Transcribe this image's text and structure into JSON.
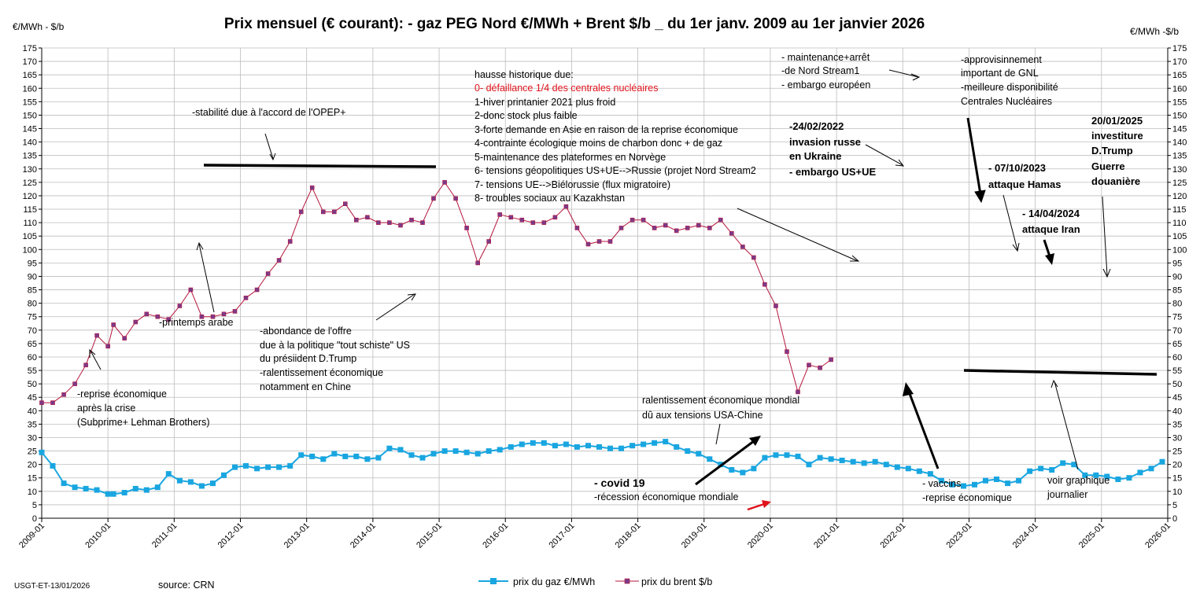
{
  "chart_data": {
    "type": "line",
    "title": "Prix mensuel (€ courant):  - gaz PEG Nord €/MWh + Brent $/b _  du 1er janv. 2009 au 1er janvier 2026",
    "ylabel_left": "€/MWh - $/b",
    "ylabel_right": "€/MWh -$/b",
    "ylim": [
      0,
      175
    ],
    "ytick_step": 5,
    "x_start": "2009-01",
    "x_end": "2026-01",
    "x_ticks": [
      "2009-01",
      "2010-01",
      "2011-01",
      "2012-01",
      "2013-01",
      "2014-01",
      "2015-01",
      "2016-01",
      "2017-01",
      "2018-01",
      "2019-01",
      "2020-01",
      "2021-01",
      "2022-01",
      "2023-01",
      "2024-01",
      "2025-01",
      "2026-01"
    ],
    "grid": true,
    "series": [
      {
        "name": "prix du gaz €/MWh",
        "color": "#19a6e0",
        "marker": "square",
        "points": [
          [
            "2009-01",
            24.5
          ],
          [
            "2009-03",
            19.5
          ],
          [
            "2009-05",
            13
          ],
          [
            "2009-07",
            11.5
          ],
          [
            "2009-09",
            11
          ],
          [
            "2009-11",
            10.5
          ],
          [
            "2010-01",
            9
          ],
          [
            "2010-02",
            9
          ],
          [
            "2010-04",
            9.5
          ],
          [
            "2010-06",
            11
          ],
          [
            "2010-08",
            10.5
          ],
          [
            "2010-10",
            11.5
          ],
          [
            "2010-12",
            16.5
          ],
          [
            "2011-02",
            14
          ],
          [
            "2011-04",
            13.5
          ],
          [
            "2011-06",
            12
          ],
          [
            "2011-08",
            13
          ],
          [
            "2011-10",
            16
          ],
          [
            "2011-12",
            19
          ],
          [
            "2012-02",
            19.5
          ],
          [
            "2012-04",
            18.5
          ],
          [
            "2012-06",
            19
          ],
          [
            "2012-08",
            19
          ],
          [
            "2012-10",
            19.5
          ],
          [
            "2012-12",
            23.5
          ],
          [
            "2013-02",
            23
          ],
          [
            "2013-04",
            22
          ],
          [
            "2013-06",
            24
          ],
          [
            "2013-08",
            23
          ],
          [
            "2013-10",
            23
          ],
          [
            "2013-12",
            22
          ],
          [
            "2014-02",
            22.5
          ],
          [
            "2014-04",
            26
          ],
          [
            "2014-06",
            25.5
          ],
          [
            "2014-08",
            23.5
          ],
          [
            "2014-10",
            22.5
          ],
          [
            "2014-12",
            24
          ],
          [
            "2015-02",
            25
          ],
          [
            "2015-04",
            25
          ],
          [
            "2015-06",
            24.5
          ],
          [
            "2015-08",
            24
          ],
          [
            "2015-10",
            25
          ],
          [
            "2015-12",
            25.5
          ],
          [
            "2016-02",
            26.5
          ],
          [
            "2016-04",
            27.5
          ],
          [
            "2016-06",
            28
          ],
          [
            "2016-08",
            28
          ],
          [
            "2016-10",
            27
          ],
          [
            "2016-12",
            27.5
          ],
          [
            "2017-02",
            26.5
          ],
          [
            "2017-04",
            27
          ],
          [
            "2017-06",
            26.5
          ],
          [
            "2017-08",
            26
          ],
          [
            "2017-10",
            26
          ],
          [
            "2017-12",
            27
          ],
          [
            "2018-02",
            27.5
          ],
          [
            "2018-04",
            28
          ],
          [
            "2018-06",
            28.5
          ],
          [
            "2018-08",
            26.5
          ],
          [
            "2018-10",
            25
          ],
          [
            "2018-12",
            24
          ],
          [
            "2019-02",
            22
          ],
          [
            "2019-04",
            20
          ],
          [
            "2019-06",
            18
          ],
          [
            "2019-08",
            17
          ],
          [
            "2019-10",
            18.5
          ],
          [
            "2019-12",
            22.5
          ],
          [
            "2020-02",
            23.5
          ],
          [
            "2020-04",
            23.5
          ],
          [
            "2020-06",
            23
          ],
          [
            "2020-08",
            20
          ],
          [
            "2020-10",
            22.5
          ],
          [
            "2020-12",
            22
          ],
          [
            "2021-02",
            21.5
          ],
          [
            "2021-04",
            21
          ],
          [
            "2021-06",
            20.5
          ],
          [
            "2021-08",
            21
          ],
          [
            "2021-10",
            20
          ],
          [
            "2021-12",
            19
          ],
          [
            "2022-02",
            18.5
          ],
          [
            "2022-04",
            17.5
          ],
          [
            "2022-06",
            16.5
          ],
          [
            "2022-08",
            14
          ],
          [
            "2022-10",
            12.5
          ],
          [
            "2022-12",
            12
          ],
          [
            "2023-02",
            12.5
          ],
          [
            "2023-04",
            14
          ],
          [
            "2023-06",
            14.5
          ],
          [
            "2023-08",
            13
          ],
          [
            "2023-10",
            14
          ],
          [
            "2023-12",
            17.5
          ],
          [
            "2024-02",
            18.5
          ],
          [
            "2024-04",
            18
          ],
          [
            "2024-06",
            20.5
          ],
          [
            "2024-08",
            20
          ],
          [
            "2024-10",
            16
          ],
          [
            "2024-12",
            16
          ],
          [
            "2025-02",
            15.5
          ],
          [
            "2025-04",
            14.5
          ],
          [
            "2025-06",
            15
          ],
          [
            "2025-08",
            17
          ],
          [
            "2025-10",
            18.5
          ],
          [
            "2025-12",
            21
          ]
        ]
      },
      {
        "name": "prix du brent $/b",
        "color": "#b5153c",
        "marker": "square",
        "points": [
          [
            "2009-01",
            43
          ],
          [
            "2009-03",
            43
          ],
          [
            "2009-05",
            46
          ],
          [
            "2009-07",
            50
          ],
          [
            "2009-09",
            57
          ],
          [
            "2009-11",
            68
          ],
          [
            "2010-01",
            64
          ],
          [
            "2010-02",
            72
          ],
          [
            "2010-04",
            67
          ],
          [
            "2010-06",
            73
          ],
          [
            "2010-08",
            76
          ],
          [
            "2010-10",
            75
          ],
          [
            "2010-12",
            74
          ],
          [
            "2011-02",
            79
          ],
          [
            "2011-04",
            85
          ],
          [
            "2011-06",
            75
          ],
          [
            "2011-08",
            75
          ],
          [
            "2011-10",
            76
          ],
          [
            "2011-12",
            77
          ],
          [
            "2012-02",
            82
          ],
          [
            "2012-04",
            85
          ],
          [
            "2012-06",
            91
          ],
          [
            "2012-08",
            96
          ],
          [
            "2012-10",
            103
          ],
          [
            "2012-12",
            114
          ],
          [
            "2013-02",
            123
          ],
          [
            "2013-04",
            114
          ],
          [
            "2013-06",
            114
          ],
          [
            "2013-08",
            117
          ],
          [
            "2013-10",
            111
          ],
          [
            "2013-12",
            112
          ],
          [
            "2014-02",
            110
          ],
          [
            "2014-04",
            110
          ],
          [
            "2014-06",
            109
          ],
          [
            "2014-08",
            111
          ],
          [
            "2014-10",
            110
          ],
          [
            "2014-12",
            119
          ],
          [
            "2015-02",
            125
          ],
          [
            "2015-04",
            119
          ],
          [
            "2015-06",
            108
          ],
          [
            "2015-08",
            95
          ],
          [
            "2015-10",
            103
          ],
          [
            "2015-12",
            113
          ],
          [
            "2016-02",
            112
          ],
          [
            "2016-04",
            111
          ],
          [
            "2016-06",
            110
          ],
          [
            "2016-08",
            110
          ],
          [
            "2016-10",
            112
          ],
          [
            "2016-12",
            116
          ],
          [
            "2017-02",
            108
          ],
          [
            "2017-04",
            102
          ],
          [
            "2017-06",
            103
          ],
          [
            "2017-08",
            103
          ],
          [
            "2017-10",
            108
          ],
          [
            "2017-12",
            111
          ],
          [
            "2018-02",
            111
          ],
          [
            "2018-04",
            108
          ],
          [
            "2018-06",
            109
          ],
          [
            "2018-08",
            107
          ],
          [
            "2018-10",
            108
          ],
          [
            "2018-12",
            109
          ],
          [
            "2019-02",
            108
          ],
          [
            "2019-04",
            111
          ],
          [
            "2019-06",
            106
          ],
          [
            "2019-08",
            101
          ],
          [
            "2019-10",
            97
          ],
          [
            "2019-12",
            87
          ],
          [
            "2020-02",
            79
          ],
          [
            "2020-04",
            62
          ],
          [
            "2020-06",
            47
          ],
          [
            "2020-08",
            57
          ],
          [
            "2020-10",
            56
          ],
          [
            "2020-12",
            59
          ]
        ]
      }
    ],
    "legend": [
      "prix du gaz €/MWh",
      "prix du brent $/b"
    ],
    "legend_placement": "bottom"
  },
  "annotations": {
    "hausse_title": "hausse historique due:",
    "hausse_0": "0- défaillance 1/4 des centrales nucléaires",
    "hausse_1": "1-hiver printanier 2021  plus froid",
    "hausse_2": "2-donc stock plus faible",
    "hausse_3": "3-forte demande en Asie en raison de la reprise économique",
    "hausse_4": "4-contrainte écologique moins de charbon donc + de gaz",
    "hausse_5": "5-maintenance des plateformes en Norvège",
    "hausse_6": "6- tensions géopolitiques US+UE-->Russie (projet Nord Stream2",
    "hausse_7": "7- tensions UE-->Biélorussie (flux migratoire)",
    "hausse_8": "8- troubles sociaux au Kazakhstan",
    "opep": "-stabilité due à l'accord de l'OPEP+",
    "printemps": "-printemps arabe",
    "reprise_1": "-reprise économique",
    "reprise_2": "après la crise",
    "reprise_3": "(Subprime+ Lehman Brothers)",
    "schiste_1": "-abondance de l'offre",
    "schiste_2": "due à la politique \"tout schiste\" US",
    "schiste_3": "du présiident  D.Trump",
    "schiste_4": "-ralentissement économique",
    "schiste_5": "notamment en Chine",
    "ralent_1": "ralentissement économique mondial",
    "ralent_2": "dû aux tensions USA-Chine",
    "covid_1": "- covid 19",
    "covid_2": "-récession économique mondiale",
    "ns_1": "- maintenance+arrêt",
    "ns_2": "-de Nord Stream1",
    "ns_3": "- embargo  européen",
    "gnl_1": "-approvisinnement",
    "gnl_2": "important de GNL",
    "gnl_3": "-meilleure disponibilité",
    "gnl_4": "Centrales Nucléaires",
    "inv_1": "-24/02/2022",
    "inv_2": "invasion russe",
    "inv_3": " en Ukraine",
    "inv_4": "- embargo US+UE",
    "hamas_1": "- 07/10/2023",
    "hamas_2": "attaque Hamas",
    "iran_1": "- 14/04/2024",
    "iran_2": "attaque Iran",
    "trump_1": "20/01/2025",
    "trump_2": "investiture",
    "trump_3": "D.Trump",
    "trump_4": "Guerre",
    "trump_5": "douanière",
    "vaccins_1": "- vaccins",
    "vaccins_2": "-reprise économique",
    "journalier_1": "voir graphique",
    "journalier_2": "journalier"
  },
  "footer": {
    "code": "USGT-ET-13/01/2026",
    "source": "source: CRN"
  }
}
